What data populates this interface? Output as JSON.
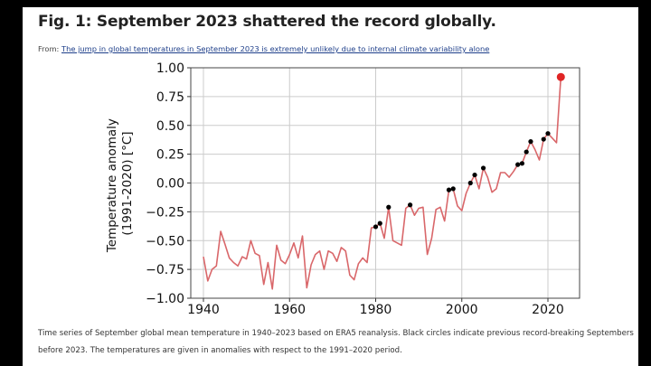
{
  "figure": {
    "title": "Fig. 1: September 2023 shattered the record globally.",
    "from_label": "From:",
    "from_link": "The jump in global temperatures in September 2023 is extremely unlikely due to internal climate variability alone",
    "caption": "Time series of September global mean temperature in 1940–2023 based on ERA5 reanalysis. Black circles indicate previous record-breaking Septembers before 2023. The temperatures are given in anomalies with respect to the 1991–2020 period."
  },
  "colors": {
    "line": "#d9676a",
    "record_marker": "#000000",
    "highlight_marker": "#e02525",
    "grid": "#cccccc"
  },
  "chart_data": {
    "type": "line",
    "title": "",
    "xlabel": "",
    "ylabel": "Temperature anomaly\n(1991-2020) [°C]",
    "ylabel_lines": [
      "Temperature anomaly",
      "(1991-2020) [°C]"
    ],
    "xlim": [
      1937,
      2027
    ],
    "ylim": [
      -1.0,
      1.0
    ],
    "xticks": [
      1940,
      1960,
      1980,
      2000,
      2020
    ],
    "xtick_labels": [
      "1940",
      "1960",
      "1980",
      "2000",
      "2020"
    ],
    "yticks": [
      -1.0,
      -0.75,
      -0.5,
      -0.25,
      0.0,
      0.25,
      0.5,
      0.75,
      1.0
    ],
    "ytick_labels": [
      "−1.00",
      "−0.75",
      "−0.50",
      "−0.25",
      "0.00",
      "0.25",
      "0.50",
      "0.75",
      "1.00"
    ],
    "grid": true,
    "x": [
      1940,
      1941,
      1942,
      1943,
      1944,
      1945,
      1946,
      1947,
      1948,
      1949,
      1950,
      1951,
      1952,
      1953,
      1954,
      1955,
      1956,
      1957,
      1958,
      1959,
      1960,
      1961,
      1962,
      1963,
      1964,
      1965,
      1966,
      1967,
      1968,
      1969,
      1970,
      1971,
      1972,
      1973,
      1974,
      1975,
      1976,
      1977,
      1978,
      1979,
      1980,
      1981,
      1982,
      1983,
      1984,
      1985,
      1986,
      1987,
      1988,
      1989,
      1990,
      1991,
      1992,
      1993,
      1994,
      1995,
      1996,
      1997,
      1998,
      1999,
      2000,
      2001,
      2002,
      2003,
      2004,
      2005,
      2006,
      2007,
      2008,
      2009,
      2010,
      2011,
      2012,
      2013,
      2014,
      2015,
      2016,
      2017,
      2018,
      2019,
      2020,
      2021,
      2022,
      2023
    ],
    "series": [
      {
        "name": "September global mean temperature anomaly",
        "values": [
          -0.64,
          -0.85,
          -0.75,
          -0.72,
          -0.42,
          -0.53,
          -0.65,
          -0.69,
          -0.72,
          -0.64,
          -0.66,
          -0.5,
          -0.61,
          -0.63,
          -0.88,
          -0.69,
          -0.92,
          -0.54,
          -0.67,
          -0.7,
          -0.62,
          -0.52,
          -0.65,
          -0.46,
          -0.91,
          -0.71,
          -0.62,
          -0.59,
          -0.75,
          -0.59,
          -0.61,
          -0.68,
          -0.56,
          -0.59,
          -0.8,
          -0.84,
          -0.7,
          -0.65,
          -0.69,
          -0.39,
          -0.38,
          -0.35,
          -0.48,
          -0.21,
          -0.5,
          -0.52,
          -0.54,
          -0.22,
          -0.19,
          -0.28,
          -0.22,
          -0.21,
          -0.62,
          -0.48,
          -0.23,
          -0.21,
          -0.33,
          -0.06,
          -0.05,
          -0.2,
          -0.24,
          -0.09,
          0.0,
          0.07,
          -0.05,
          0.13,
          0.05,
          -0.08,
          -0.05,
          0.09,
          0.09,
          0.05,
          0.1,
          0.16,
          0.17,
          0.27,
          0.36,
          0.29,
          0.2,
          0.38,
          0.43,
          0.39,
          0.35,
          0.92
        ]
      }
    ],
    "record_years": [
      1980,
      1981,
      1983,
      1988,
      1997,
      1998,
      2002,
      2003,
      2005,
      2013,
      2014,
      2015,
      2016,
      2019,
      2020
    ],
    "highlight_year": 2023,
    "highlight_value": 0.92
  }
}
